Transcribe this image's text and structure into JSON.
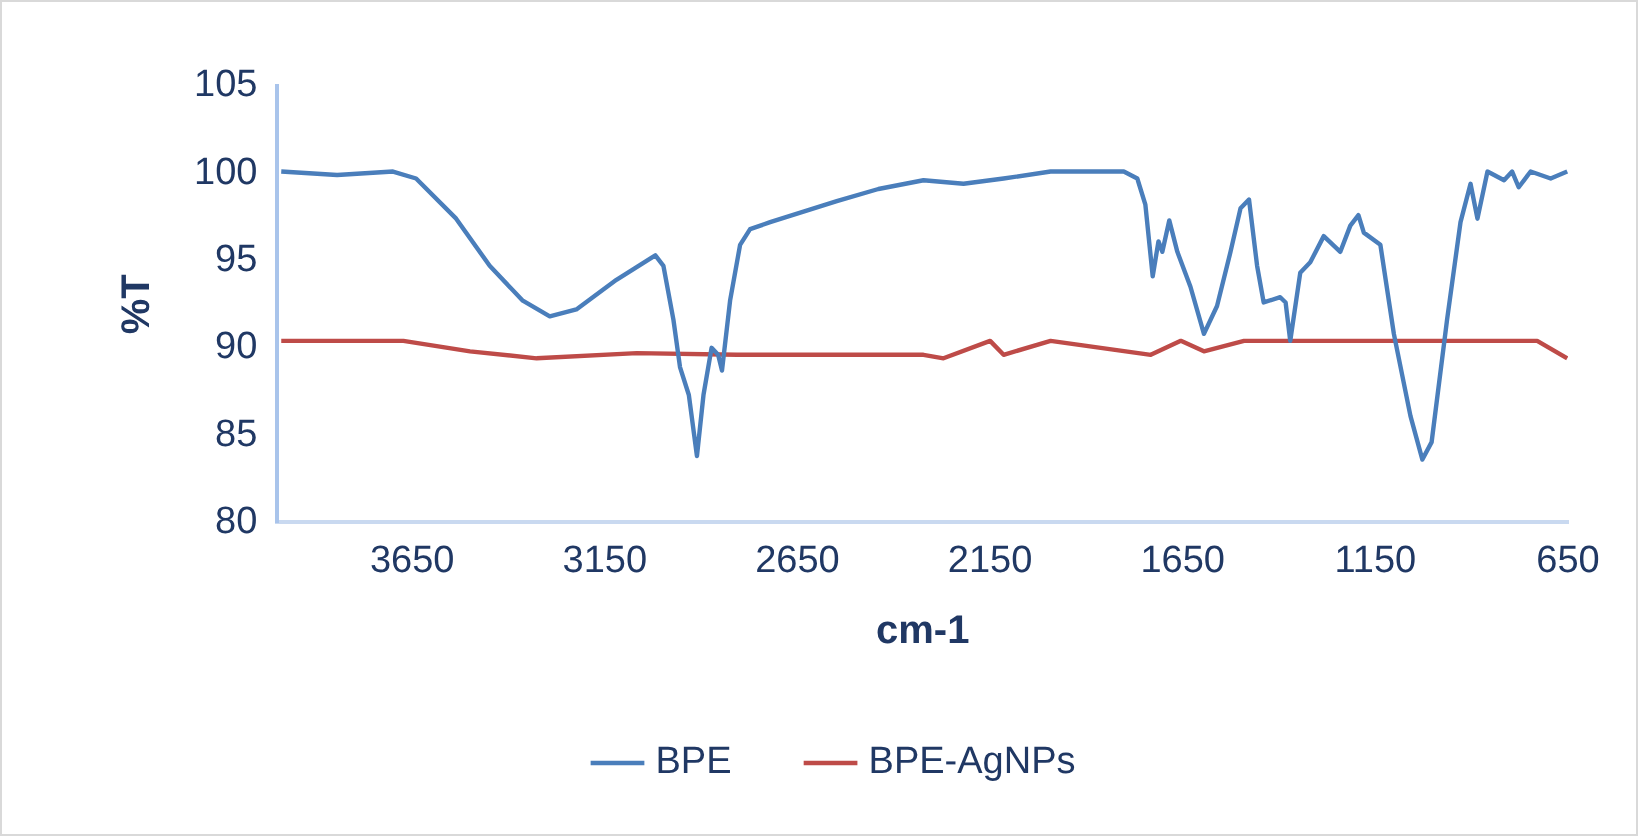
{
  "chart_data": {
    "type": "line",
    "xlabel": "cm-1",
    "ylabel": "%T",
    "xlim": [
      4000,
      650
    ],
    "xticks": [
      3650,
      3150,
      2650,
      2150,
      1650,
      1150,
      650
    ],
    "ylim": [
      80,
      105
    ],
    "yticks": [
      80,
      85,
      90,
      95,
      100,
      105
    ],
    "grid": false,
    "legend": "bottom",
    "marker": "none",
    "line_style": "solid",
    "series": [
      {
        "name": "BPE",
        "color": "#4a7ebb",
        "x": [
          3990,
          3845,
          3700,
          3640,
          3536,
          3449,
          3363,
          3293,
          3224,
          3120,
          3019,
          2998,
          2972,
          2955,
          2932,
          2911,
          2894,
          2873,
          2856,
          2846,
          2825,
          2799,
          2773,
          2721,
          2548,
          2440,
          2323,
          2219,
          2115,
          1993,
          1837,
          1803,
          1768,
          1747,
          1728,
          1713,
          1703,
          1685,
          1664,
          1630,
          1595,
          1561,
          1526,
          1500,
          1478,
          1457,
          1440,
          1397,
          1383,
          1371,
          1345,
          1319,
          1284,
          1241,
          1215,
          1194,
          1180,
          1137,
          1102,
          1059,
          1028,
          1004,
          964,
          929,
          903,
          885,
          859,
          816,
          795,
          778,
          747,
          695,
          652
        ],
        "values": [
          100.1,
          99.9,
          100.1,
          99.7,
          97.4,
          94.7,
          92.7,
          91.8,
          92.2,
          93.9,
          95.3,
          94.7,
          91.6,
          88.9,
          87.3,
          83.8,
          87.3,
          90.0,
          89.6,
          88.7,
          92.7,
          95.9,
          96.8,
          97.2,
          98.4,
          99.1,
          99.6,
          99.4,
          99.7,
          100.1,
          100.1,
          100.1,
          99.7,
          98.2,
          94.1,
          96.1,
          95.5,
          97.3,
          95.5,
          93.5,
          90.8,
          92.4,
          95.5,
          98.0,
          98.5,
          94.7,
          92.6,
          92.9,
          92.6,
          90.4,
          94.3,
          94.9,
          96.4,
          95.5,
          97.0,
          97.6,
          96.6,
          95.9,
          90.8,
          86.1,
          83.6,
          84.6,
          91.6,
          97.2,
          99.4,
          97.4,
          100.1,
          99.6,
          100.1,
          99.2,
          100.1,
          99.7,
          100.1
        ]
      },
      {
        "name": "BPE-AgNPs",
        "color": "#be4b48",
        "x": [
          3990,
          3673,
          3500,
          3327,
          3067,
          2807,
          2323,
          2271,
          2150,
          2115,
          1993,
          1733,
          1655,
          1595,
          1491,
          730,
          652
        ],
        "values": [
          90.4,
          90.4,
          89.8,
          89.4,
          89.7,
          89.6,
          89.6,
          89.4,
          90.4,
          89.6,
          90.4,
          89.6,
          90.4,
          89.8,
          90.4,
          90.4,
          89.4
        ]
      }
    ]
  }
}
